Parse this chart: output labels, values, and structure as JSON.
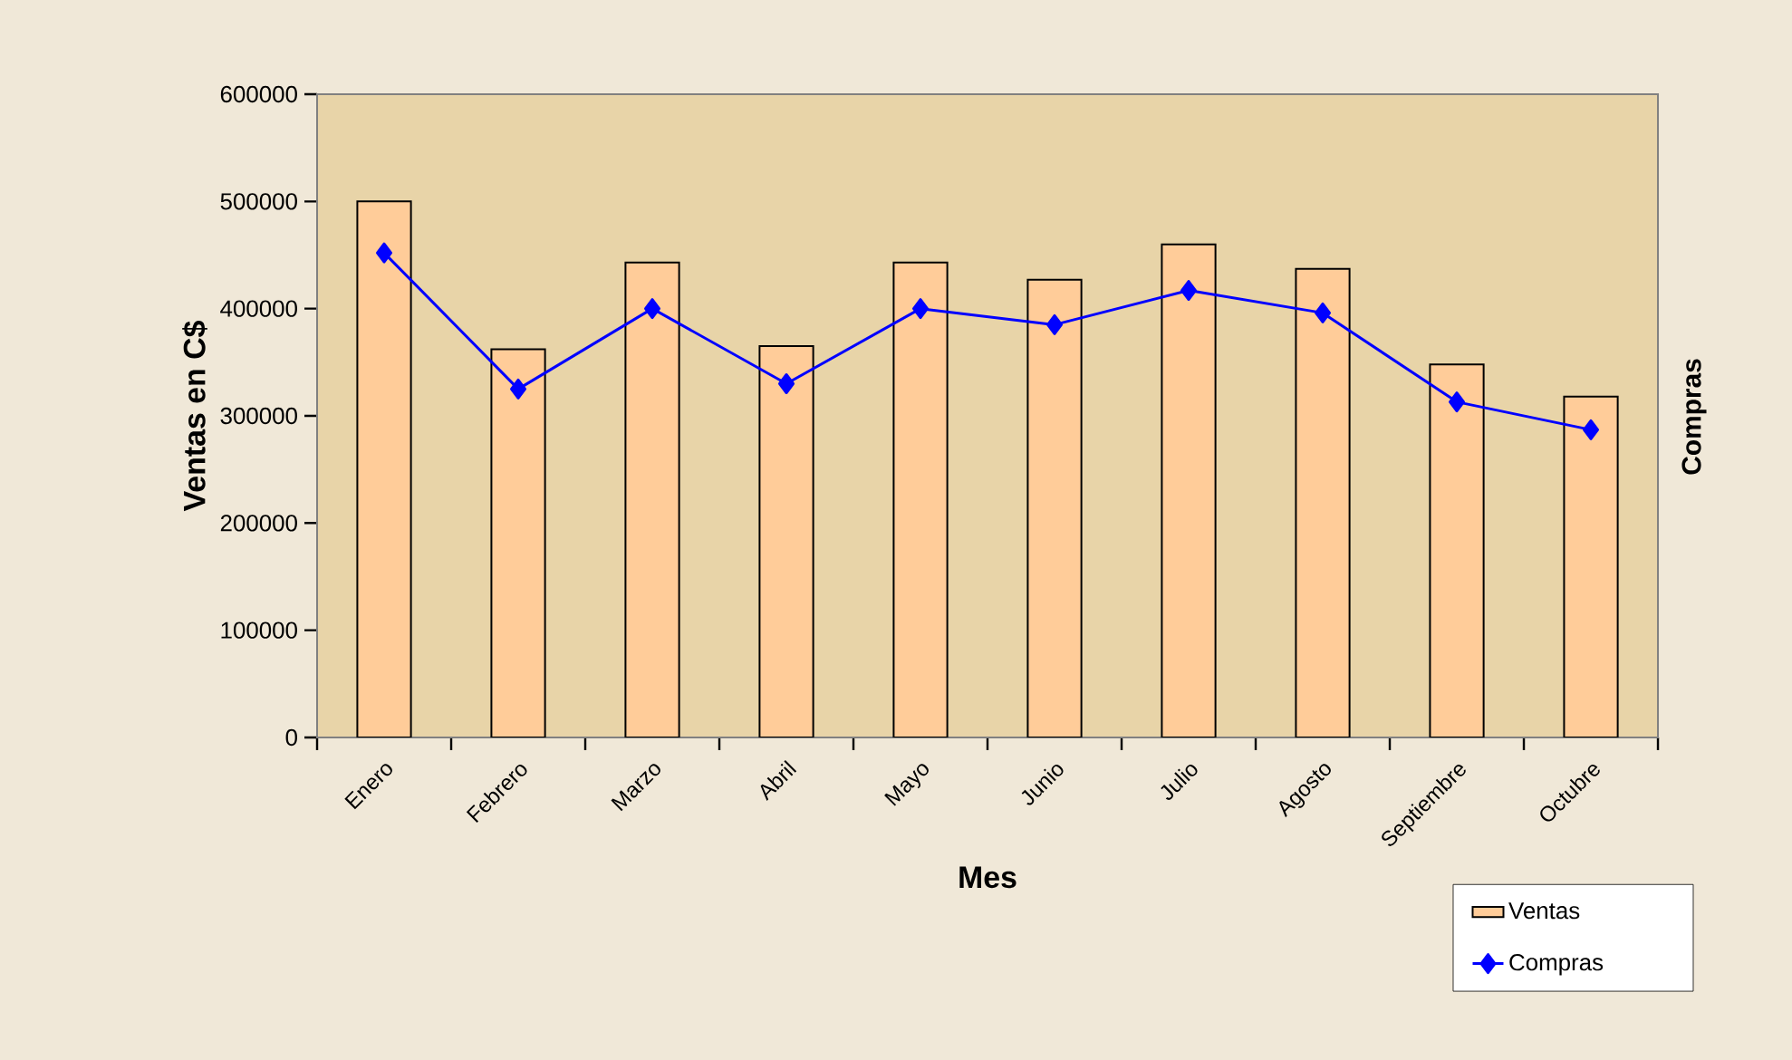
{
  "chart_data": {
    "type": "bar",
    "categories": [
      "Enero",
      "Febrero",
      "Marzo",
      "Abril",
      "Mayo",
      "Junio",
      "Julio",
      "Agosto",
      "Septiembre",
      "Octubre"
    ],
    "series": [
      {
        "name": "Ventas",
        "color": "#ffcc99",
        "values": [
          500000,
          362000,
          443000,
          365000,
          443000,
          427000,
          460000,
          437000,
          348000,
          318000
        ]
      },
      {
        "name": "Compras",
        "type": "line",
        "color": "#0000ff",
        "marker": "diamond",
        "values": [
          452000,
          325000,
          400000,
          330000,
          400000,
          385000,
          417000,
          396000,
          313000,
          287000
        ]
      }
    ],
    "xlabel": "Mes",
    "ylabel": "Ventas en C$",
    "y2label": "Compras",
    "ylim": [
      0,
      600000
    ],
    "yticks": [
      0,
      100000,
      200000,
      300000,
      400000,
      500000,
      600000
    ],
    "legend": "bottom right"
  }
}
